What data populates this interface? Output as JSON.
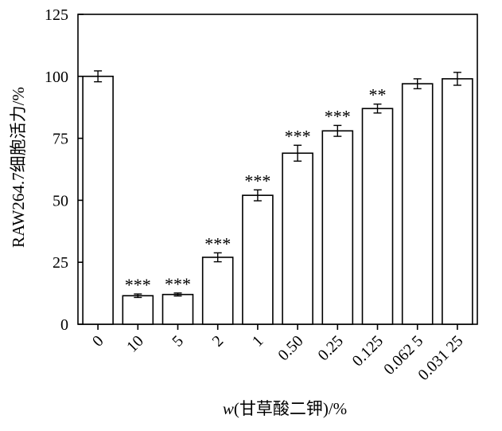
{
  "chart_data": {
    "type": "bar",
    "categories": [
      "0",
      "10",
      "5",
      "2",
      "1",
      "0.50",
      "0.25",
      "0.125",
      "0.062 5",
      "0.031 25"
    ],
    "values": [
      100,
      11.5,
      12,
      27,
      52,
      69,
      78,
      87,
      97,
      99
    ],
    "errors": [
      2.2,
      0.7,
      0.6,
      1.8,
      2.2,
      3.2,
      2.2,
      1.8,
      2.0,
      2.6
    ],
    "significance": [
      "",
      "***",
      "***",
      "***",
      "***",
      "***",
      "***",
      "**",
      "",
      ""
    ],
    "title": "",
    "xlabel_italic": "w",
    "xlabel_rest": "(甘草酸二钾)/%",
    "ylabel": "RAW264.7细胞活力/%",
    "ylim": [
      0,
      125
    ],
    "yticks": [
      0,
      25,
      50,
      75,
      100,
      125
    ],
    "grid": false,
    "bar_fill": "#ffffff",
    "bar_stroke": "#000000"
  }
}
